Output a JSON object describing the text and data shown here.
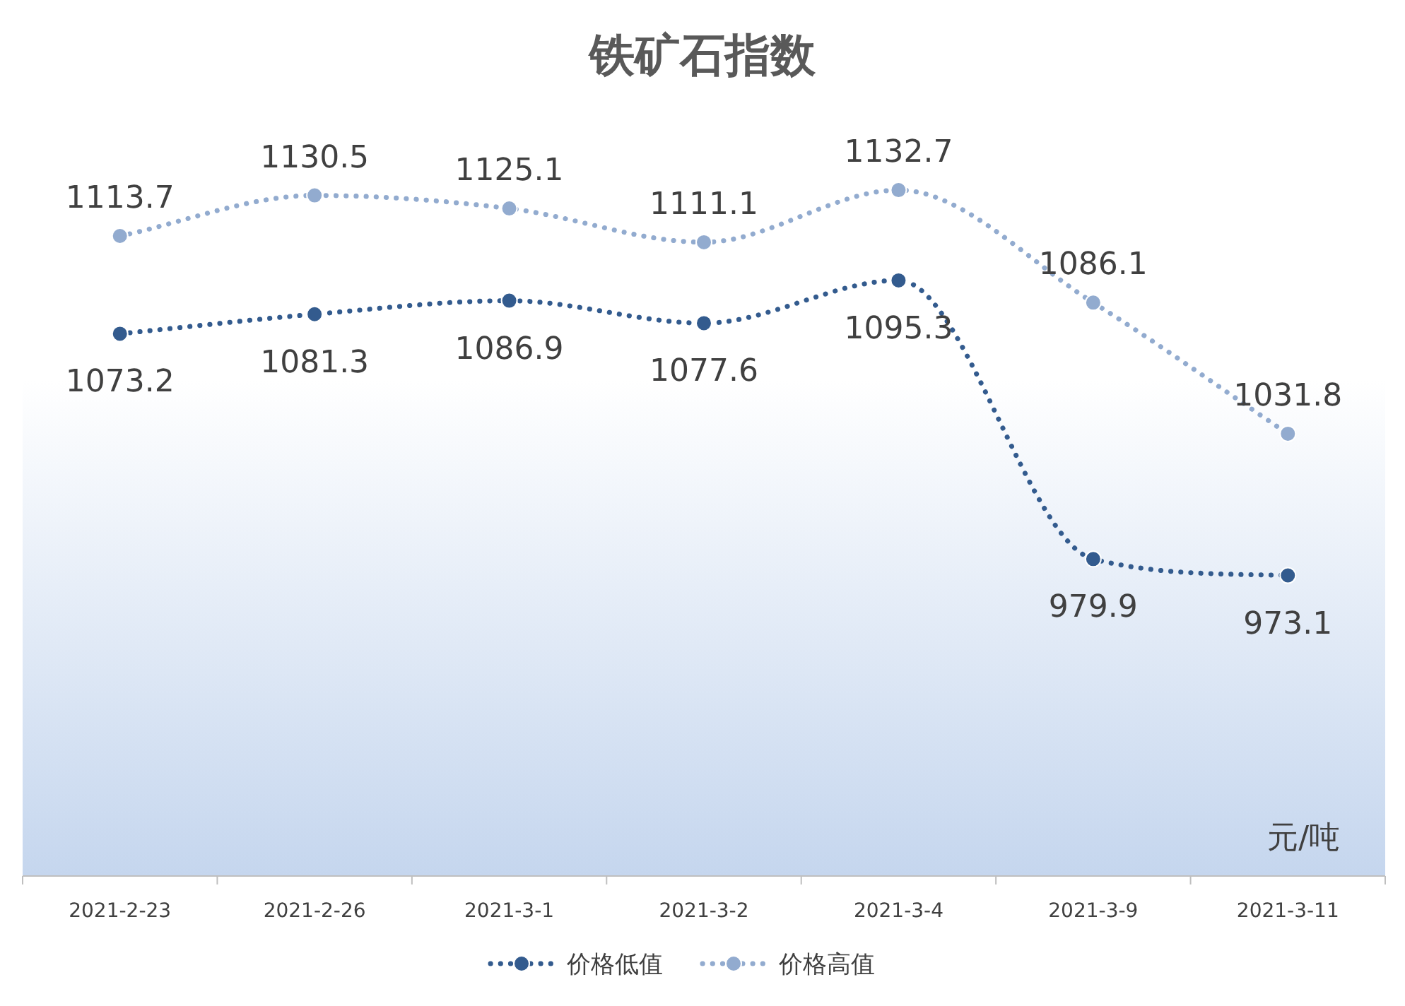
{
  "chart_data": {
    "type": "line",
    "title": "铁矿石指数",
    "categories": [
      "2021-2-23",
      "2021-2-26",
      "2021-3-1",
      "2021-3-2",
      "2021-3-4",
      "2021-3-9",
      "2021-3-11"
    ],
    "series": [
      {
        "name": "价格低值",
        "color": "#335b8e",
        "values": [
          1073.2,
          1081.3,
          1086.9,
          1077.6,
          1095.3,
          979.9,
          973.1
        ]
      },
      {
        "name": "价格高值",
        "color": "#92abcf",
        "values": [
          1113.7,
          1130.5,
          1125.1,
          1111.1,
          1132.7,
          1086.1,
          1031.8
        ]
      }
    ],
    "annotations": [
      "元/吨"
    ],
    "data_labels": true,
    "legend": "bottom",
    "marker": "circle",
    "line_style": "dotted",
    "grid": false
  }
}
